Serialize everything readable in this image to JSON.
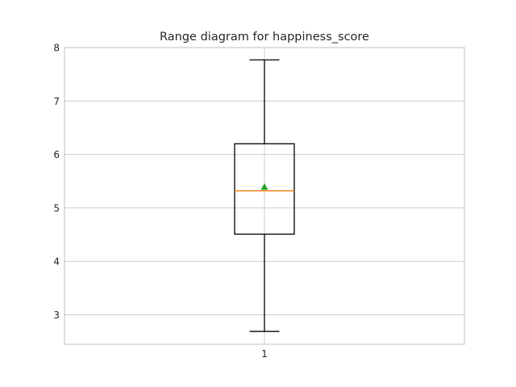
{
  "chart_data": {
    "type": "box",
    "title": "Range diagram for happiness_score",
    "xlabel": "",
    "ylabel": "",
    "categories": [
      "1"
    ],
    "ylim": [
      2.45,
      8.0
    ],
    "yticks": [
      3,
      4,
      5,
      6,
      7,
      8
    ],
    "grid": true,
    "boxes": [
      {
        "category": "1",
        "whisker_low": 2.69,
        "q1": 4.51,
        "median": 5.32,
        "mean": 5.39,
        "q3": 6.2,
        "whisker_high": 7.77
      }
    ],
    "colors": {
      "box": "#000000",
      "median": "#ff7f0e",
      "mean_marker": "#2ca02c",
      "grid": "#cccccc",
      "frame": "#cccccc"
    }
  }
}
